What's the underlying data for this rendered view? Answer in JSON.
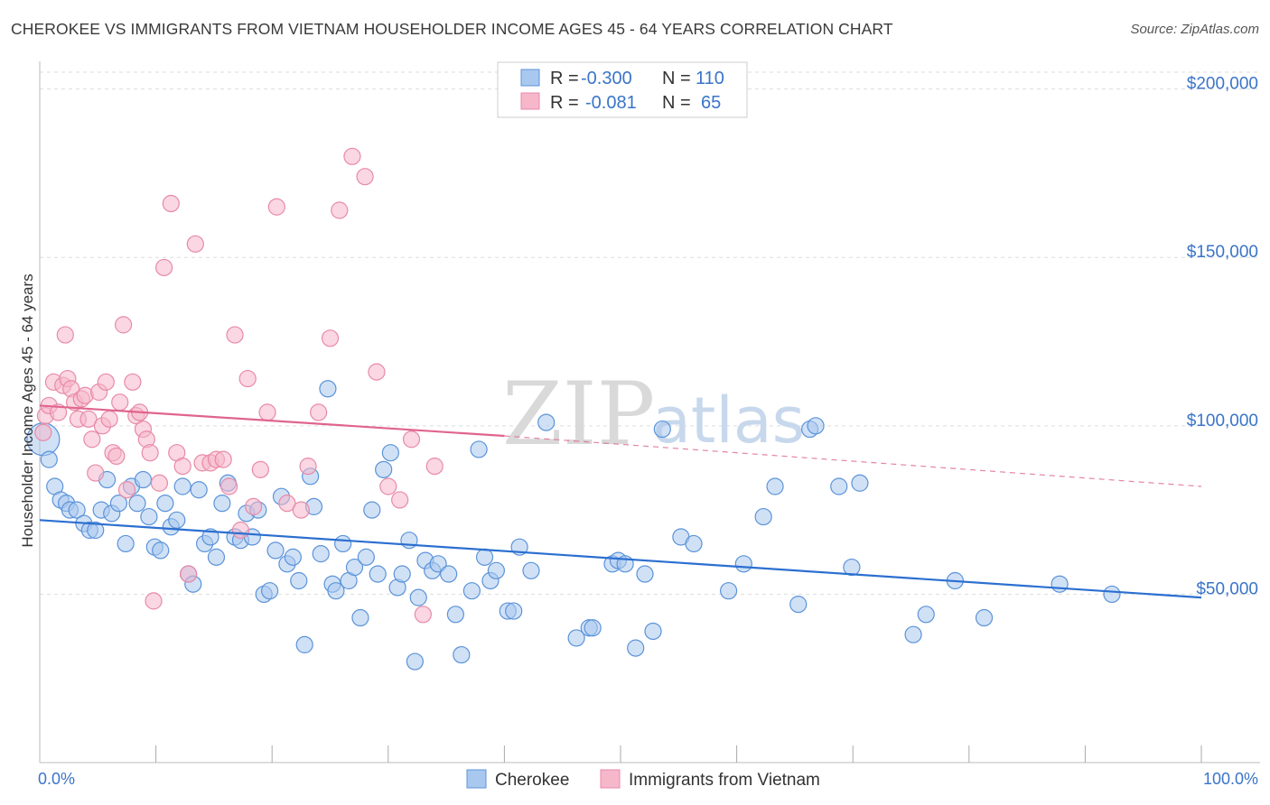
{
  "title": "CHEROKEE VS IMMIGRANTS FROM VIETNAM HOUSEHOLDER INCOME AGES 45 - 64 YEARS CORRELATION CHART",
  "source": "Source: ZipAtlas.com",
  "watermark": {
    "zip": "ZIP",
    "atlas": "atlas"
  },
  "colors": {
    "blue_fill": "#a9c8ef",
    "blue_stroke": "#5b93d9",
    "blue_line": "#2b6fd0",
    "pink_fill": "#f6b7cb",
    "pink_stroke": "#e88aa8",
    "pink_line": "#e0648e",
    "tick_text": "#3a74c9",
    "grid": "#dddddd"
  },
  "legend": {
    "rows": [
      {
        "r_label": "R =",
        "r_value": "-0.300",
        "n_label": "N =",
        "n_value": "110"
      },
      {
        "r_label": "R =",
        "r_value": "-0.081",
        "n_label": "N =",
        "n_value": "65"
      }
    ]
  },
  "bottom_legend": [
    "Cherokee",
    "Immigrants from Vietnam"
  ],
  "chart_data": {
    "type": "scatter",
    "xlabel": "",
    "ylabel": "Householder Income Ages 45 - 64 years",
    "xlim": [
      0,
      100
    ],
    "ylim": [
      0,
      205000
    ],
    "x_tick_labels": [
      "0.0%",
      "100.0%"
    ],
    "y_ticks": [
      50000,
      100000,
      150000,
      200000
    ],
    "y_tick_labels": [
      "$50,000",
      "$100,000",
      "$150,000",
      "$200,000"
    ],
    "grid": true,
    "legend_position": "top-center",
    "series": [
      {
        "name": "Cherokee",
        "r": -0.3,
        "n": 110,
        "trend": {
          "x": [
            0,
            100
          ],
          "y": [
            72000,
            49000
          ],
          "style": "solid"
        },
        "points": [
          [
            0.3,
            96000
          ],
          [
            0.8,
            90000
          ],
          [
            1.3,
            82000
          ],
          [
            1.8,
            78000
          ],
          [
            2.3,
            77000
          ],
          [
            2.6,
            75000
          ],
          [
            3.2,
            75000
          ],
          [
            3.8,
            71000
          ],
          [
            4.3,
            69000
          ],
          [
            4.8,
            69000
          ],
          [
            5.3,
            75000
          ],
          [
            5.8,
            84000
          ],
          [
            6.2,
            74000
          ],
          [
            6.8,
            77000
          ],
          [
            7.4,
            65000
          ],
          [
            7.9,
            82000
          ],
          [
            8.4,
            77000
          ],
          [
            8.9,
            84000
          ],
          [
            9.4,
            73000
          ],
          [
            9.9,
            64000
          ],
          [
            10.4,
            63000
          ],
          [
            10.8,
            77000
          ],
          [
            11.3,
            70000
          ],
          [
            11.8,
            72000
          ],
          [
            12.3,
            82000
          ],
          [
            12.8,
            56000
          ],
          [
            13.2,
            53000
          ],
          [
            13.7,
            81000
          ],
          [
            14.2,
            65000
          ],
          [
            14.7,
            67000
          ],
          [
            15.2,
            61000
          ],
          [
            15.7,
            77000
          ],
          [
            16.2,
            83000
          ],
          [
            16.8,
            67000
          ],
          [
            17.3,
            66000
          ],
          [
            17.8,
            74000
          ],
          [
            18.3,
            67000
          ],
          [
            18.8,
            75000
          ],
          [
            19.3,
            50000
          ],
          [
            19.8,
            51000
          ],
          [
            20.3,
            63000
          ],
          [
            20.8,
            79000
          ],
          [
            21.3,
            59000
          ],
          [
            21.8,
            61000
          ],
          [
            22.3,
            54000
          ],
          [
            22.8,
            35000
          ],
          [
            23.3,
            85000
          ],
          [
            23.6,
            76000
          ],
          [
            24.2,
            62000
          ],
          [
            24.8,
            111000
          ],
          [
            25.2,
            53000
          ],
          [
            25.5,
            51000
          ],
          [
            26.1,
            65000
          ],
          [
            26.6,
            54000
          ],
          [
            27.1,
            58000
          ],
          [
            27.6,
            43000
          ],
          [
            28.1,
            61000
          ],
          [
            28.6,
            75000
          ],
          [
            29.1,
            56000
          ],
          [
            29.6,
            87000
          ],
          [
            30.2,
            92000
          ],
          [
            30.8,
            52000
          ],
          [
            31.2,
            56000
          ],
          [
            31.8,
            66000
          ],
          [
            32.3,
            30000
          ],
          [
            32.6,
            49000
          ],
          [
            33.2,
            60000
          ],
          [
            33.8,
            57000
          ],
          [
            34.3,
            59000
          ],
          [
            35.2,
            56000
          ],
          [
            35.8,
            44000
          ],
          [
            36.3,
            32000
          ],
          [
            37.2,
            51000
          ],
          [
            37.8,
            93000
          ],
          [
            38.3,
            61000
          ],
          [
            38.8,
            54000
          ],
          [
            39.3,
            57000
          ],
          [
            40.3,
            45000
          ],
          [
            40.8,
            45000
          ],
          [
            41.3,
            64000
          ],
          [
            42.3,
            57000
          ],
          [
            43.6,
            101000
          ],
          [
            46.2,
            37000
          ],
          [
            47.3,
            40000
          ],
          [
            47.6,
            40000
          ],
          [
            49.3,
            59000
          ],
          [
            49.8,
            60000
          ],
          [
            50.4,
            59000
          ],
          [
            51.3,
            34000
          ],
          [
            52.1,
            56000
          ],
          [
            52.8,
            39000
          ],
          [
            53.6,
            99000
          ],
          [
            55.2,
            67000
          ],
          [
            56.3,
            65000
          ],
          [
            59.3,
            51000
          ],
          [
            60.6,
            59000
          ],
          [
            62.3,
            73000
          ],
          [
            63.3,
            82000
          ],
          [
            65.3,
            47000
          ],
          [
            66.3,
            99000
          ],
          [
            66.8,
            100000
          ],
          [
            68.8,
            82000
          ],
          [
            69.9,
            58000
          ],
          [
            70.6,
            83000
          ],
          [
            75.2,
            38000
          ],
          [
            76.3,
            44000
          ],
          [
            78.8,
            54000
          ],
          [
            81.3,
            43000
          ],
          [
            87.8,
            53000
          ],
          [
            92.3,
            50000
          ]
        ]
      },
      {
        "name": "Immigrants from Vietnam",
        "r": -0.081,
        "n": 65,
        "trend": {
          "x": [
            0,
            40
          ],
          "y": [
            106000,
            97000
          ],
          "style": "solid",
          "dashed_to": [
            100,
            82000
          ]
        },
        "points": [
          [
            0.3,
            98000
          ],
          [
            0.5,
            103000
          ],
          [
            0.8,
            106000
          ],
          [
            1.2,
            113000
          ],
          [
            1.6,
            104000
          ],
          [
            2.0,
            112000
          ],
          [
            2.2,
            127000
          ],
          [
            2.4,
            114000
          ],
          [
            2.7,
            111000
          ],
          [
            3.0,
            107000
          ],
          [
            3.3,
            102000
          ],
          [
            3.6,
            108000
          ],
          [
            3.9,
            109000
          ],
          [
            4.2,
            102000
          ],
          [
            4.5,
            96000
          ],
          [
            4.8,
            86000
          ],
          [
            5.1,
            110000
          ],
          [
            5.4,
            100000
          ],
          [
            5.7,
            113000
          ],
          [
            6.0,
            102000
          ],
          [
            6.3,
            92000
          ],
          [
            6.6,
            91000
          ],
          [
            6.9,
            107000
          ],
          [
            7.2,
            130000
          ],
          [
            7.5,
            81000
          ],
          [
            8.0,
            113000
          ],
          [
            8.3,
            103000
          ],
          [
            8.6,
            104000
          ],
          [
            8.9,
            99000
          ],
          [
            9.2,
            96000
          ],
          [
            9.5,
            92000
          ],
          [
            9.8,
            48000
          ],
          [
            10.3,
            83000
          ],
          [
            10.7,
            147000
          ],
          [
            11.3,
            166000
          ],
          [
            11.8,
            92000
          ],
          [
            12.3,
            88000
          ],
          [
            12.8,
            56000
          ],
          [
            13.4,
            154000
          ],
          [
            14.0,
            89000
          ],
          [
            14.7,
            89000
          ],
          [
            15.2,
            90000
          ],
          [
            15.8,
            90000
          ],
          [
            16.3,
            82000
          ],
          [
            16.8,
            127000
          ],
          [
            17.3,
            69000
          ],
          [
            17.9,
            114000
          ],
          [
            18.4,
            76000
          ],
          [
            19.0,
            87000
          ],
          [
            19.6,
            104000
          ],
          [
            20.4,
            165000
          ],
          [
            21.3,
            77000
          ],
          [
            22.5,
            75000
          ],
          [
            23.1,
            88000
          ],
          [
            24.0,
            104000
          ],
          [
            25.0,
            126000
          ],
          [
            25.8,
            164000
          ],
          [
            26.9,
            180000
          ],
          [
            28.0,
            174000
          ],
          [
            29.0,
            116000
          ],
          [
            30.0,
            82000
          ],
          [
            31.0,
            78000
          ],
          [
            32.0,
            96000
          ],
          [
            33.0,
            44000
          ],
          [
            34.0,
            88000
          ]
        ]
      }
    ]
  }
}
